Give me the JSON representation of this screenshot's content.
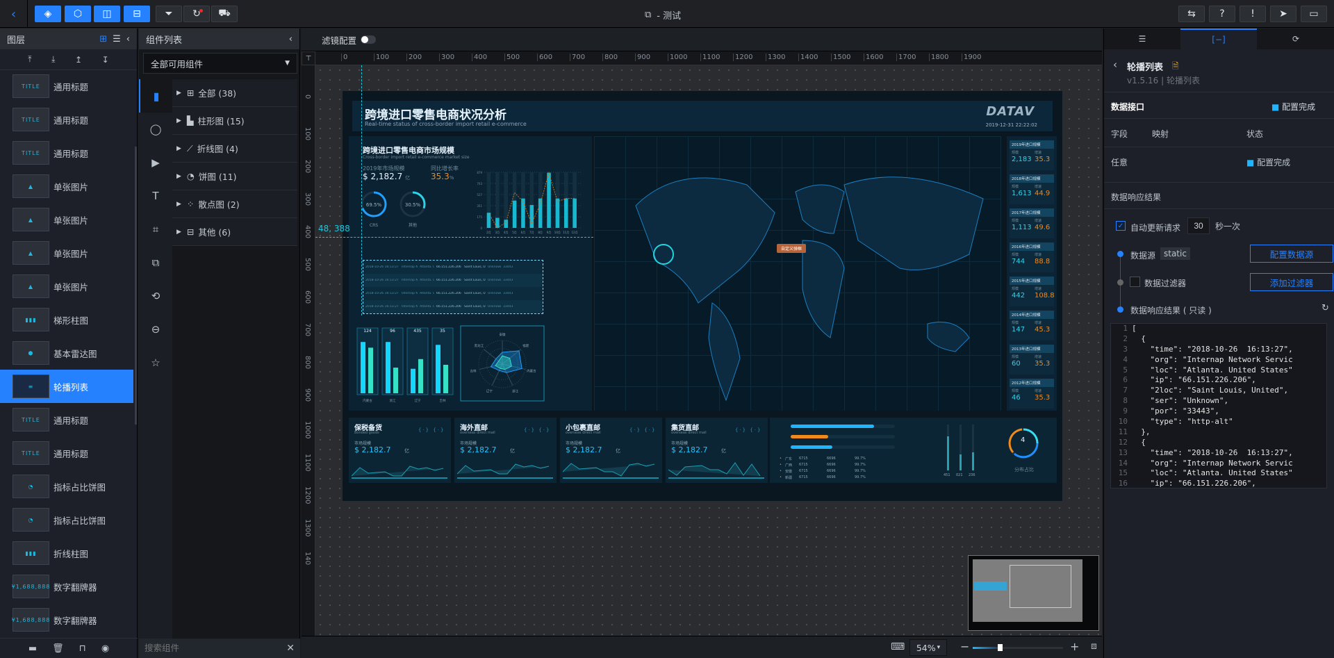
{
  "topbar": {
    "title": "- 测试",
    "left_buttons": [
      "layers-icon",
      "cube-icon",
      "panel-icon",
      "print-icon"
    ],
    "tool_buttons": [
      "filter-icon",
      "refresh-icon",
      "paint-icon"
    ],
    "right_buttons": [
      "template-icon",
      "help-icon",
      "alert-icon",
      "publish-icon",
      "preview-icon"
    ]
  },
  "layers": {
    "title": "图层",
    "items": [
      {
        "label": "通用标题",
        "thumb": "TITLE"
      },
      {
        "label": "通用标题",
        "thumb": "TITLE"
      },
      {
        "label": "通用标题",
        "thumb": "TITLE"
      },
      {
        "label": "单张图片",
        "thumb": "▲"
      },
      {
        "label": "单张图片",
        "thumb": "▲"
      },
      {
        "label": "单张图片",
        "thumb": "▲"
      },
      {
        "label": "单张图片",
        "thumb": "▲"
      },
      {
        "label": "梯形柱图",
        "thumb": "▮▮▮"
      },
      {
        "label": "基本雷达图",
        "thumb": "⬢"
      },
      {
        "label": "轮播列表",
        "thumb": "≡",
        "selected": true
      },
      {
        "label": "通用标题",
        "thumb": "TITLE"
      },
      {
        "label": "通用标题",
        "thumb": "TITLE"
      },
      {
        "label": "指标占比饼图",
        "thumb": "◔"
      },
      {
        "label": "指标占比饼图",
        "thumb": "◔"
      },
      {
        "label": "折线柱图",
        "thumb": "▮▮▮"
      },
      {
        "label": "数字翻牌器",
        "thumb": "¥1,688,888"
      },
      {
        "label": "数字翻牌器",
        "thumb": "¥1,688,888"
      }
    ]
  },
  "components": {
    "title": "组件列表",
    "filter": "全部可用组件",
    "categories": [
      {
        "label": "全部 (38)",
        "icon": "grid-icon"
      },
      {
        "label": "柱形图 (15)",
        "icon": "bar-chart-icon"
      },
      {
        "label": "折线图 (4)",
        "icon": "line-chart-icon"
      },
      {
        "label": "饼图 (11)",
        "icon": "pie-chart-icon"
      },
      {
        "label": "散点图 (2)",
        "icon": "scatter-icon"
      },
      {
        "label": "其他 (6)",
        "icon": "other-icon"
      }
    ],
    "search_placeholder": "搜索组件"
  },
  "canvas": {
    "filter_label": "滤镜配置",
    "filter_on": false,
    "ruler_h": [
      "0",
      "100",
      "200",
      "300",
      "400",
      "500",
      "600",
      "700",
      "800",
      "900",
      "1000",
      "1100",
      "1200",
      "1300",
      "1400",
      "1500",
      "1600",
      "1700",
      "1800",
      "1900"
    ],
    "ruler_v": [
      "0",
      "100",
      "200",
      "300",
      "400",
      "500",
      "600",
      "700",
      "800",
      "900",
      "1000",
      "1100",
      "1200",
      "1300",
      "140"
    ],
    "guide_readout": "48, 388",
    "zoom": "54%",
    "zoom_fraction": 0.3
  },
  "dashboard": {
    "title": "跨境进口零售电商状况分析",
    "subtitle": "Real-time status of cross-border import retail e-commerce",
    "logo": "DATAV",
    "datetime": "2019-12-31 22:22:02",
    "market": {
      "title": "跨境进口零售电商市场规模",
      "subtitle": "Cross-border import retail e-commerce market size",
      "size_label": "2019年市场规模",
      "size_value": "$ 2,182.7",
      "size_unit": "亿",
      "growth_label": "同比增长率",
      "growth_value": "35.3",
      "growth_unit": "%",
      "donuts": [
        {
          "value": "69.5%",
          "label": "CRS",
          "fraction": 0.695
        },
        {
          "value": "30.5%",
          "label": "其他",
          "fraction": 0.305
        }
      ]
    },
    "chart_data": {
      "type": "bar",
      "categories": [
        "2月",
        "3月",
        "4月",
        "5月",
        "6月",
        "7月",
        "8月",
        "9月",
        "10月",
        "11月",
        "12月"
      ],
      "yticks": [
        "0",
        "175",
        "351",
        "527",
        "703",
        "879"
      ],
      "ylim": [
        0,
        879
      ],
      "series": [
        {
          "type": "bar",
          "values": [
            240,
            159,
            129,
            432,
            465,
            362,
            465,
            872,
            465,
            465,
            465
          ]
        },
        {
          "type": "line",
          "values": [
            233,
            0,
            85,
            558,
            417,
            66,
            380,
            872,
            417,
            465,
            465
          ]
        }
      ]
    },
    "table_rows": [
      [
        "2018-10-26 16:13:27",
        "Internap Network Services",
        "Atlanta. United States",
        "66.151.226.206",
        "Saint Louis, United",
        "Unknown",
        "33443"
      ],
      [
        "2018-10-26 16:13:27",
        "Internap Network Services",
        "Atlanta. United States",
        "66.151.226.206",
        "Saint Louis, United",
        "Unknown",
        "33443"
      ],
      [
        "2018-10-26 16:13:27",
        "Internap Network Services",
        "Atlanta. United States",
        "66.151.226.206",
        "Saint Louis, United",
        "Unknown",
        "33443"
      ],
      [
        "2018-10-26 16:13:27",
        "Internap Network Services",
        "Atlanta. United States",
        "66.151.226.206",
        "Saint Louis, United",
        "Unknown",
        "33443"
      ]
    ],
    "group_bars": [
      {
        "total": "124",
        "label": "内蒙古",
        "a": 0.9,
        "b": 0.8
      },
      {
        "total": "96",
        "label": "浙江",
        "a": 0.9,
        "b": 0.45
      },
      {
        "total": "435",
        "label": "辽宁",
        "a": 0.43,
        "b": 0.6
      },
      {
        "total": "35",
        "label": "吉林",
        "a": 0.85,
        "b": 0.5
      }
    ],
    "radar_labels": [
      "安徽",
      "福建",
      "内蒙古",
      "浙江",
      "辽宁",
      "吉林",
      "黑龙江"
    ],
    "map_popup": "自定义弹框",
    "years": [
      {
        "title": "2019年进口规模",
        "scale_label": "规模",
        "scale": "2,183",
        "growth_label": "增速",
        "growth": "35.3"
      },
      {
        "title": "2018年进口规模",
        "scale_label": "规模",
        "scale": "1,613",
        "growth_label": "增速",
        "growth": "44.9"
      },
      {
        "title": "2017年进口规模",
        "scale_label": "规模",
        "scale": "1,113",
        "growth_label": "增速",
        "growth": "49.6"
      },
      {
        "title": "2016年进口规模",
        "scale_label": "规模",
        "scale": "744",
        "growth_label": "增速",
        "growth": "88.8"
      },
      {
        "title": "2015年进口规模",
        "scale_label": "规模",
        "scale": "442",
        "growth_label": "增速",
        "growth": "108.8"
      },
      {
        "title": "2014年进口规模",
        "scale_label": "规模",
        "scale": "147",
        "growth_label": "增速",
        "growth": "45.3"
      },
      {
        "title": "2013年进口规模",
        "scale_label": "规模",
        "scale": "60",
        "growth_label": "增速",
        "growth": "35.3"
      },
      {
        "title": "2012年进口规模",
        "scale_label": "规模",
        "scale": "46",
        "growth_label": "增速",
        "growth": "35.3"
      }
    ],
    "bottom_cards": [
      {
        "title": "保税备货",
        "subtitle": "Bonded goods",
        "label": "市场规模",
        "value": "$ 2,182.7",
        "unit": "亿"
      },
      {
        "title": "海外直邮",
        "subtitle": "overseas direct mail",
        "label": "市场规模",
        "value": "$ 2,182.7",
        "unit": "亿"
      },
      {
        "title": "小包裹直邮",
        "subtitle": "overseas direct mail",
        "label": "市场规模",
        "value": "$ 2,182.7",
        "unit": "亿"
      },
      {
        "title": "集货直邮",
        "subtitle": "overseas direct mail",
        "label": "市场规模",
        "value": "$ 2,182.7",
        "unit": "亿"
      }
    ],
    "progress": [
      {
        "fraction": 0.8,
        "color": "#1fb6ff"
      },
      {
        "fraction": 0.36,
        "color": "#f08a1c"
      },
      {
        "fraction": 0.4,
        "color": "#1fb6ff"
      }
    ],
    "region_rows": [
      [
        "广东",
        "6715",
        "6696",
        "99.7%"
      ],
      [
        "广西",
        "6715",
        "6696",
        "99.7%"
      ],
      [
        "安徽",
        "6715",
        "6696",
        "99.7%"
      ],
      [
        "新疆",
        "6715",
        "6696",
        "99.7%"
      ]
    ],
    "gauges": [
      {
        "label": "451",
        "fraction": 0.75
      },
      {
        "label": "021",
        "fraction": 0.35
      },
      {
        "label": "236",
        "fraction": 0.4
      }
    ],
    "ring_value": "4",
    "ring_label": "分布占比"
  },
  "right_panel": {
    "tabs": [
      "settings-icon",
      "data-icon",
      "interaction-icon"
    ],
    "active_tab": 1,
    "component_name": "轮播列表",
    "version": "v1.5.16 | 轮播列表",
    "data_interface": "数据接口",
    "status_done": "配置完成",
    "col_field": "字段",
    "col_mapping": "映射",
    "col_status": "状态",
    "field_any": "任意",
    "field_status": "配置完成",
    "response_title": "数据响应结果",
    "auto_update_label": "自动更新请求",
    "auto_update_checked": true,
    "interval": "30",
    "interval_unit": "秒一次",
    "source_label": "数据源",
    "source_type": "static",
    "config_source_btn": "配置数据源",
    "filter_label": "数据过滤器",
    "add_filter_btn": "添加过滤器",
    "readonly_label": "数据响应结果 ( 只读 )",
    "code_lines": [
      "[",
      "  {",
      "    \"time\": \"2018-10-26  16:13:27\",",
      "    \"org\": \"Internap Network Servic",
      "    \"loc\": \"Atlanta. United States\"",
      "    \"ip\": \"66.151.226.206\",",
      "    \"2loc\": \"Saint Louis, United\",",
      "    \"ser\": \"Unknown\",",
      "    \"por\": \"33443\",",
      "    \"type\": \"http-alt\"",
      "  },",
      "  {",
      "    \"time\": \"2018-10-26  16:13:27\",",
      "    \"org\": \"Internap Network Servic",
      "    \"loc\": \"Atlanta. United States\"",
      "    \"ip\": \"66.151.226.206\","
    ]
  }
}
